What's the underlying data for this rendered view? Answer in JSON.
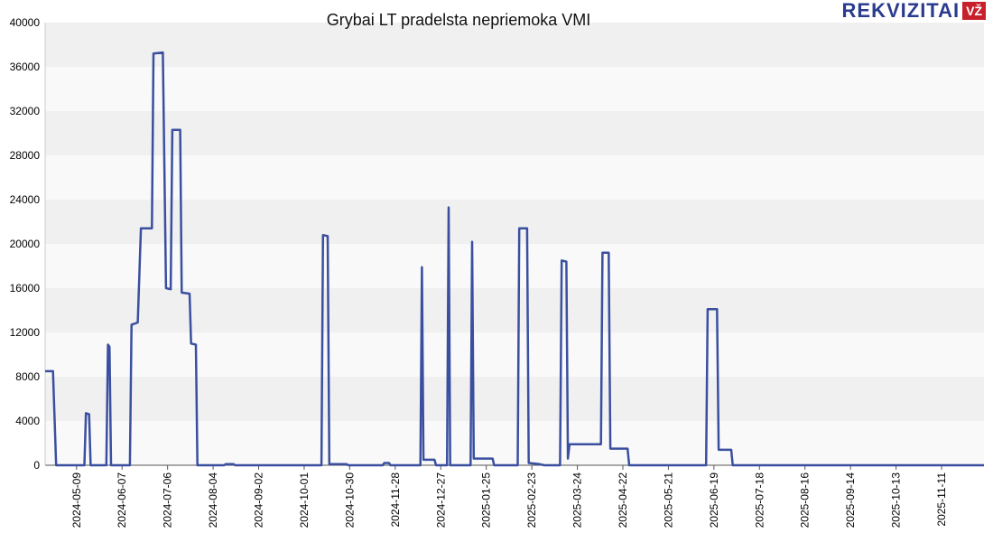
{
  "brand": {
    "name": "REKVIZITAI",
    "badge": "VŽ"
  },
  "chart_data": {
    "type": "line",
    "title": "Grybai LT pradelsta nepriemoka VMI",
    "xlabel": "",
    "ylabel": "",
    "ylim": [
      0,
      40000
    ],
    "yticks": [
      0,
      4000,
      8000,
      12000,
      16000,
      20000,
      24000,
      28000,
      32000,
      36000,
      40000
    ],
    "x_start": "2024-04-19",
    "x_end": "2025-12-08",
    "xtick_labels": [
      "2024-05-09",
      "2024-06-07",
      "2024-07-06",
      "2024-08-04",
      "2024-09-02",
      "2024-10-01",
      "2024-10-30",
      "2024-11-28",
      "2024-12-27",
      "2025-01-25",
      "2025-02-23",
      "2025-03-24",
      "2025-04-22",
      "2025-05-21",
      "2025-06-19",
      "2025-07-18",
      "2025-08-16",
      "2025-09-14",
      "2025-10-13",
      "2025-11-11"
    ],
    "grid": "horizontal bands",
    "line_color": "#3a4fa0",
    "series": [
      {
        "points": [
          [
            "2024-04-19",
            8500
          ],
          [
            "2024-04-24",
            8500
          ],
          [
            "2024-04-26",
            0
          ],
          [
            "2024-05-14",
            0
          ],
          [
            "2024-05-15",
            4700
          ],
          [
            "2024-05-17",
            4600
          ],
          [
            "2024-05-18",
            0
          ],
          [
            "2024-05-28",
            0
          ],
          [
            "2024-05-29",
            10900
          ],
          [
            "2024-05-30",
            10700
          ],
          [
            "2024-05-31",
            0
          ],
          [
            "2024-06-12",
            0
          ],
          [
            "2024-06-13",
            12700
          ],
          [
            "2024-06-17",
            12900
          ],
          [
            "2024-06-19",
            21400
          ],
          [
            "2024-06-26",
            21400
          ],
          [
            "2024-06-27",
            37200
          ],
          [
            "2024-07-03",
            37300
          ],
          [
            "2024-07-05",
            16000
          ],
          [
            "2024-07-08",
            15900
          ],
          [
            "2024-07-09",
            30300
          ],
          [
            "2024-07-14",
            30300
          ],
          [
            "2024-07-15",
            15600
          ],
          [
            "2024-07-20",
            15500
          ],
          [
            "2024-07-21",
            11000
          ],
          [
            "2024-07-24",
            10900
          ],
          [
            "2024-07-25",
            0
          ],
          [
            "2024-08-11",
            0
          ],
          [
            "2024-08-12",
            100
          ],
          [
            "2024-08-17",
            100
          ],
          [
            "2024-08-18",
            0
          ],
          [
            "2024-10-12",
            0
          ],
          [
            "2024-10-13",
            20800
          ],
          [
            "2024-10-16",
            20700
          ],
          [
            "2024-10-17",
            100
          ],
          [
            "2024-10-28",
            100
          ],
          [
            "2024-10-29",
            0
          ],
          [
            "2024-11-20",
            0
          ],
          [
            "2024-11-21",
            200
          ],
          [
            "2024-11-24",
            200
          ],
          [
            "2024-11-25",
            0
          ],
          [
            "2024-12-14",
            0
          ],
          [
            "2024-12-15",
            17900
          ],
          [
            "2024-12-16",
            500
          ],
          [
            "2024-12-23",
            500
          ],
          [
            "2024-12-24",
            0
          ],
          [
            "2024-12-31",
            0
          ],
          [
            "2025-01-01",
            23300
          ],
          [
            "2025-01-02",
            0
          ],
          [
            "2025-01-15",
            0
          ],
          [
            "2025-01-16",
            20200
          ],
          [
            "2025-01-17",
            600
          ],
          [
            "2025-01-29",
            600
          ],
          [
            "2025-01-30",
            0
          ],
          [
            "2025-02-14",
            0
          ],
          [
            "2025-02-15",
            21400
          ],
          [
            "2025-02-20",
            21400
          ],
          [
            "2025-02-21",
            200
          ],
          [
            "2025-02-28",
            100
          ],
          [
            "2025-03-03",
            0
          ],
          [
            "2025-03-13",
            0
          ],
          [
            "2025-03-14",
            18500
          ],
          [
            "2025-03-17",
            18400
          ],
          [
            "2025-03-18",
            600
          ],
          [
            "2025-03-19",
            1900
          ],
          [
            "2025-04-08",
            1900
          ],
          [
            "2025-04-09",
            19200
          ],
          [
            "2025-04-13",
            19200
          ],
          [
            "2025-04-14",
            1500
          ],
          [
            "2025-04-25",
            1500
          ],
          [
            "2025-04-26",
            0
          ],
          [
            "2025-06-14",
            0
          ],
          [
            "2025-06-15",
            14100
          ],
          [
            "2025-06-21",
            14100
          ],
          [
            "2025-06-22",
            1400
          ],
          [
            "2025-06-30",
            1400
          ],
          [
            "2025-07-01",
            0
          ],
          [
            "2025-12-08",
            0
          ]
        ]
      }
    ]
  }
}
